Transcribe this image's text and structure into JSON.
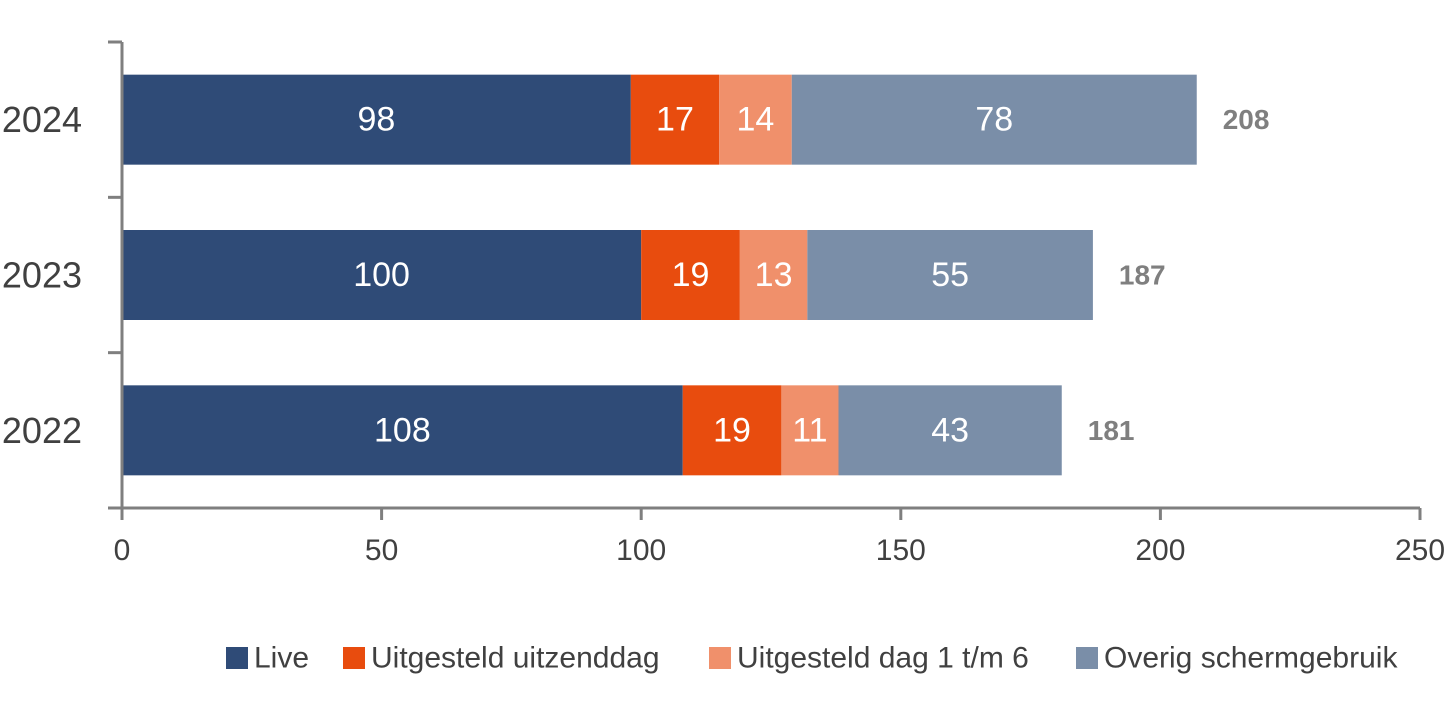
{
  "chart_data": {
    "type": "bar",
    "orientation": "horizontal",
    "stacked": true,
    "categories": [
      "2024",
      "2023",
      "2022"
    ],
    "series": [
      {
        "name": "Live",
        "values": [
          98,
          100,
          108
        ],
        "color": "#2f4b77"
      },
      {
        "name": "Uitgesteld uitzenddag",
        "values": [
          17,
          19,
          19
        ],
        "color": "#e84c0e"
      },
      {
        "name": "Uitgesteld dag 1 t/m 6",
        "values": [
          14,
          13,
          11
        ],
        "color": "#f0906b"
      },
      {
        "name": "Overig schermgebruik",
        "values": [
          78,
          55,
          43
        ],
        "color": "#7a8ea8"
      }
    ],
    "totals": [
      208,
      187,
      181
    ],
    "xlim": [
      0,
      250
    ],
    "x_ticks": [
      0,
      50,
      100,
      150,
      200,
      250
    ],
    "title": "",
    "xlabel": "",
    "ylabel": "",
    "grid": false,
    "legend_position": "bottom"
  }
}
